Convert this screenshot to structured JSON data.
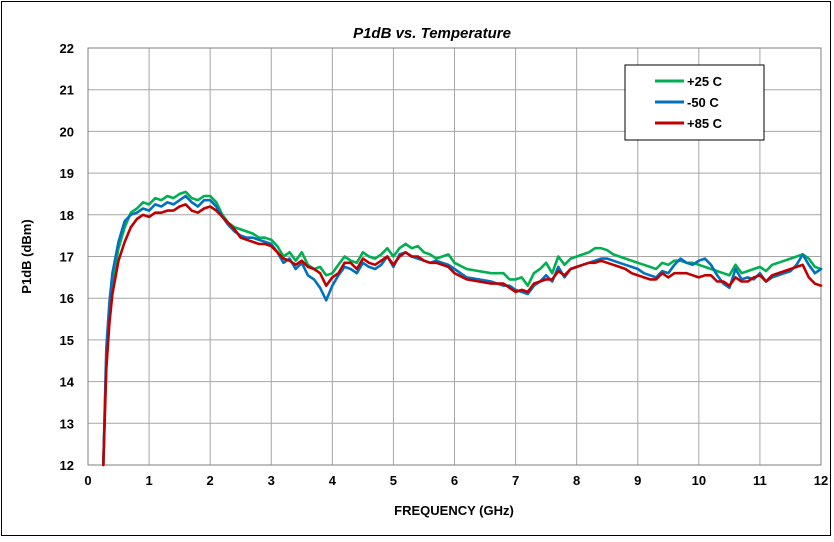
{
  "chart_data": {
    "type": "line",
    "title": "P1dB vs. Temperature",
    "xlabel": "FREQUENCY (GHz)",
    "ylabel": "P1dB (dBm)",
    "xlim": [
      0,
      12
    ],
    "ylim": [
      12,
      22
    ],
    "xticks": [
      "0",
      "1",
      "2",
      "3",
      "4",
      "5",
      "6",
      "7",
      "8",
      "9",
      "10",
      "11",
      "12"
    ],
    "yticks": [
      "12",
      "13",
      "14",
      "15",
      "16",
      "17",
      "18",
      "19",
      "20",
      "21",
      "22"
    ],
    "grid": true,
    "legend_position": "top-right",
    "series": [
      {
        "name": "+25 C",
        "color": "#00b050",
        "x": [
          0.25,
          0.3,
          0.35,
          0.4,
          0.5,
          0.6,
          0.7,
          0.8,
          0.9,
          1.0,
          1.1,
          1.2,
          1.3,
          1.4,
          1.5,
          1.6,
          1.7,
          1.8,
          1.9,
          2.0,
          2.1,
          2.2,
          2.3,
          2.4,
          2.5,
          2.6,
          2.7,
          2.8,
          2.9,
          3.0,
          3.1,
          3.2,
          3.3,
          3.4,
          3.5,
          3.6,
          3.7,
          3.8,
          3.9,
          4.0,
          4.1,
          4.2,
          4.3,
          4.4,
          4.5,
          4.6,
          4.7,
          4.8,
          4.9,
          5.0,
          5.1,
          5.2,
          5.3,
          5.4,
          5.5,
          5.6,
          5.7,
          5.8,
          5.9,
          6.0,
          6.2,
          6.4,
          6.6,
          6.8,
          6.9,
          7.0,
          7.1,
          7.2,
          7.3,
          7.4,
          7.5,
          7.6,
          7.7,
          7.8,
          7.9,
          8.0,
          8.1,
          8.2,
          8.3,
          8.4,
          8.5,
          8.6,
          8.7,
          8.8,
          8.9,
          9.0,
          9.1,
          9.2,
          9.3,
          9.4,
          9.5,
          9.6,
          9.7,
          9.8,
          9.9,
          10.0,
          10.1,
          10.2,
          10.3,
          10.4,
          10.5,
          10.6,
          10.7,
          10.8,
          10.9,
          11.0,
          11.1,
          11.2,
          11.3,
          11.4,
          11.5,
          11.6,
          11.7,
          11.8,
          11.9,
          12.0
        ],
        "values": [
          12.0,
          14.5,
          15.6,
          16.4,
          17.2,
          17.7,
          18.05,
          18.15,
          18.3,
          18.25,
          18.4,
          18.35,
          18.45,
          18.4,
          18.5,
          18.55,
          18.4,
          18.35,
          18.45,
          18.45,
          18.3,
          18.0,
          17.8,
          17.7,
          17.65,
          17.6,
          17.55,
          17.45,
          17.45,
          17.4,
          17.25,
          17.0,
          17.1,
          16.9,
          17.1,
          16.8,
          16.7,
          16.75,
          16.55,
          16.6,
          16.8,
          17.0,
          16.9,
          16.85,
          17.1,
          17.0,
          16.95,
          17.05,
          17.2,
          17.0,
          17.2,
          17.3,
          17.2,
          17.25,
          17.1,
          17.05,
          16.95,
          17.0,
          17.05,
          16.85,
          16.7,
          16.65,
          16.6,
          16.6,
          16.45,
          16.45,
          16.5,
          16.3,
          16.6,
          16.7,
          16.85,
          16.6,
          17.0,
          16.8,
          16.95,
          17.0,
          17.05,
          17.1,
          17.2,
          17.2,
          17.15,
          17.05,
          17.0,
          16.95,
          16.9,
          16.85,
          16.8,
          16.75,
          16.7,
          16.85,
          16.8,
          16.9,
          16.9,
          16.85,
          16.85,
          16.8,
          16.75,
          16.7,
          16.65,
          16.6,
          16.55,
          16.8,
          16.6,
          16.65,
          16.7,
          16.75,
          16.65,
          16.8,
          16.85,
          16.9,
          16.95,
          17.0,
          17.05,
          16.95,
          16.75,
          16.7
        ]
      },
      {
        "name": "-50 C",
        "color": "#0070c0",
        "x": [
          0.25,
          0.3,
          0.35,
          0.4,
          0.5,
          0.6,
          0.7,
          0.8,
          0.9,
          1.0,
          1.1,
          1.2,
          1.3,
          1.4,
          1.5,
          1.6,
          1.7,
          1.8,
          1.9,
          2.0,
          2.1,
          2.2,
          2.3,
          2.4,
          2.5,
          2.6,
          2.7,
          2.8,
          2.9,
          3.0,
          3.1,
          3.2,
          3.3,
          3.4,
          3.5,
          3.6,
          3.7,
          3.8,
          3.9,
          4.0,
          4.1,
          4.2,
          4.3,
          4.4,
          4.5,
          4.6,
          4.7,
          4.8,
          4.9,
          5.0,
          5.1,
          5.2,
          5.3,
          5.4,
          5.5,
          5.6,
          5.7,
          5.8,
          5.9,
          6.0,
          6.2,
          6.4,
          6.6,
          6.8,
          6.9,
          7.0,
          7.1,
          7.2,
          7.3,
          7.4,
          7.5,
          7.6,
          7.7,
          7.8,
          7.9,
          8.0,
          8.1,
          8.2,
          8.3,
          8.4,
          8.5,
          8.6,
          8.7,
          8.8,
          8.9,
          9.0,
          9.1,
          9.2,
          9.3,
          9.4,
          9.5,
          9.6,
          9.7,
          9.8,
          9.9,
          10.0,
          10.1,
          10.2,
          10.3,
          10.4,
          10.5,
          10.6,
          10.7,
          10.8,
          10.9,
          11.0,
          11.1,
          11.2,
          11.3,
          11.4,
          11.5,
          11.6,
          11.7,
          11.8,
          11.9,
          12.0
        ],
        "values": [
          12.0,
          14.8,
          15.9,
          16.6,
          17.35,
          17.85,
          18.0,
          18.05,
          18.15,
          18.1,
          18.25,
          18.2,
          18.3,
          18.25,
          18.35,
          18.45,
          18.3,
          18.2,
          18.35,
          18.35,
          18.2,
          17.95,
          17.75,
          17.6,
          17.5,
          17.45,
          17.45,
          17.4,
          17.35,
          17.3,
          17.1,
          16.85,
          16.95,
          16.7,
          16.85,
          16.55,
          16.45,
          16.25,
          15.95,
          16.3,
          16.55,
          16.75,
          16.7,
          16.6,
          16.85,
          16.75,
          16.7,
          16.8,
          17.0,
          16.75,
          17.05,
          17.1,
          17.0,
          16.95,
          16.9,
          16.85,
          16.9,
          16.85,
          16.8,
          16.7,
          16.5,
          16.45,
          16.4,
          16.3,
          16.3,
          16.2,
          16.15,
          16.1,
          16.3,
          16.4,
          16.55,
          16.4,
          16.75,
          16.5,
          16.7,
          16.75,
          16.8,
          16.85,
          16.9,
          16.95,
          16.95,
          16.9,
          16.85,
          16.8,
          16.75,
          16.7,
          16.6,
          16.55,
          16.5,
          16.65,
          16.6,
          16.8,
          16.95,
          16.85,
          16.8,
          16.9,
          16.95,
          16.8,
          16.55,
          16.35,
          16.25,
          16.7,
          16.45,
          16.5,
          16.45,
          16.6,
          16.4,
          16.5,
          16.55,
          16.6,
          16.65,
          16.8,
          17.05,
          16.8,
          16.6,
          16.7
        ]
      },
      {
        "name": "+85 C",
        "color": "#c00000",
        "x": [
          0.25,
          0.3,
          0.35,
          0.4,
          0.5,
          0.6,
          0.7,
          0.8,
          0.9,
          1.0,
          1.1,
          1.2,
          1.3,
          1.4,
          1.5,
          1.6,
          1.7,
          1.8,
          1.9,
          2.0,
          2.1,
          2.2,
          2.3,
          2.4,
          2.5,
          2.6,
          2.7,
          2.8,
          2.9,
          3.0,
          3.1,
          3.2,
          3.3,
          3.4,
          3.5,
          3.6,
          3.7,
          3.8,
          3.9,
          4.0,
          4.1,
          4.2,
          4.3,
          4.4,
          4.5,
          4.6,
          4.7,
          4.8,
          4.9,
          5.0,
          5.1,
          5.2,
          5.3,
          5.4,
          5.5,
          5.6,
          5.7,
          5.8,
          5.9,
          6.0,
          6.2,
          6.4,
          6.6,
          6.8,
          6.9,
          7.0,
          7.1,
          7.2,
          7.3,
          7.4,
          7.5,
          7.6,
          7.7,
          7.8,
          7.9,
          8.0,
          8.1,
          8.2,
          8.3,
          8.4,
          8.5,
          8.6,
          8.7,
          8.8,
          8.9,
          9.0,
          9.1,
          9.2,
          9.3,
          9.4,
          9.5,
          9.6,
          9.7,
          9.8,
          9.9,
          10.0,
          10.1,
          10.2,
          10.3,
          10.4,
          10.5,
          10.6,
          10.7,
          10.8,
          10.9,
          11.0,
          11.1,
          11.2,
          11.3,
          11.4,
          11.5,
          11.6,
          11.7,
          11.8,
          11.9,
          12.0
        ],
        "values": [
          12.0,
          14.3,
          15.4,
          16.1,
          16.9,
          17.35,
          17.7,
          17.9,
          18.0,
          17.95,
          18.05,
          18.05,
          18.1,
          18.1,
          18.2,
          18.25,
          18.1,
          18.05,
          18.15,
          18.2,
          18.1,
          17.95,
          17.8,
          17.65,
          17.45,
          17.4,
          17.35,
          17.3,
          17.3,
          17.25,
          17.1,
          16.95,
          16.9,
          16.8,
          16.9,
          16.75,
          16.7,
          16.6,
          16.3,
          16.5,
          16.6,
          16.85,
          16.85,
          16.7,
          16.95,
          16.85,
          16.8,
          16.9,
          17.0,
          16.8,
          17.0,
          17.1,
          17.0,
          17.0,
          16.9,
          16.85,
          16.85,
          16.8,
          16.75,
          16.6,
          16.45,
          16.4,
          16.35,
          16.35,
          16.25,
          16.15,
          16.2,
          16.15,
          16.35,
          16.4,
          16.45,
          16.45,
          16.65,
          16.55,
          16.7,
          16.75,
          16.8,
          16.85,
          16.85,
          16.9,
          16.85,
          16.8,
          16.75,
          16.7,
          16.6,
          16.55,
          16.5,
          16.45,
          16.45,
          16.6,
          16.5,
          16.6,
          16.6,
          16.6,
          16.55,
          16.5,
          16.55,
          16.55,
          16.4,
          16.4,
          16.3,
          16.5,
          16.4,
          16.4,
          16.5,
          16.55,
          16.4,
          16.55,
          16.6,
          16.65,
          16.7,
          16.75,
          16.8,
          16.5,
          16.35,
          16.3
        ]
      }
    ]
  }
}
